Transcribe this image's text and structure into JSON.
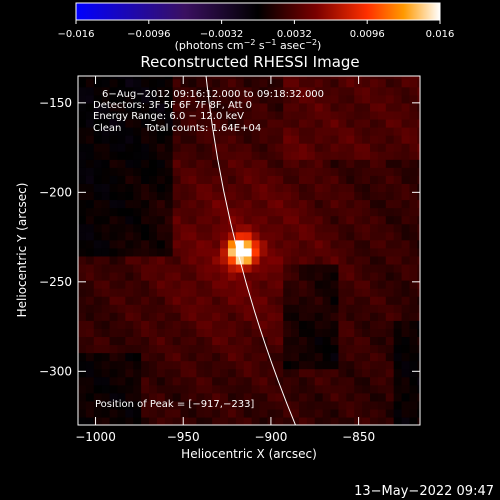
{
  "chart_data": {
    "type": "heatmap",
    "title": "Reconstructed RHESSI Image",
    "xlabel": "Heliocentric X (arcsec)",
    "ylabel": "Heliocentric Y (arcsec)",
    "xlim": [
      -1010,
      -815
    ],
    "ylim": [
      -330,
      -135
    ],
    "x_ticks": [
      -1000,
      -950,
      -900,
      -850
    ],
    "x_tick_labels": [
      "−1000",
      "−950",
      "−900",
      "−850"
    ],
    "y_ticks": [
      -150,
      -200,
      -250,
      -300
    ],
    "y_tick_labels": [
      "−150",
      "−200",
      "−250",
      "−300"
    ],
    "colorbar": {
      "range": [
        -0.016,
        0.016
      ],
      "ticks": [
        -0.016,
        -0.0096,
        -0.0032,
        0.0032,
        0.0096,
        0.016
      ],
      "tick_labels": [
        "−0.016",
        "−0.0096",
        "−0.0032",
        "0.0032",
        "0.0096",
        "0.016"
      ],
      "stops": [
        "#0000ff",
        "#3a1060",
        "#000000",
        "#7a0000",
        "#ff3000",
        "#ff9900",
        "#ffffff"
      ]
    },
    "annotations": {
      "time_range": "6−Aug−2012 09:16:12.000 to 09:18:32.000",
      "detectors": "Detectors: 3F 5F 6F 7F 8F, Att 0",
      "energy": "Energy Range: 6.0 − 12.0 keV",
      "method": "Clean",
      "counts": "Total counts: 1.64E+04",
      "peak": "Position of Peak = [−917,−233]"
    },
    "peak": {
      "x": -917,
      "y": -233
    },
    "limb_curve": [
      [
        -937,
        -135
      ],
      [
        -919,
        -233
      ],
      [
        -886,
        -330
      ]
    ]
  },
  "footer": {
    "timestamp": "13−May−2022 09:47"
  }
}
